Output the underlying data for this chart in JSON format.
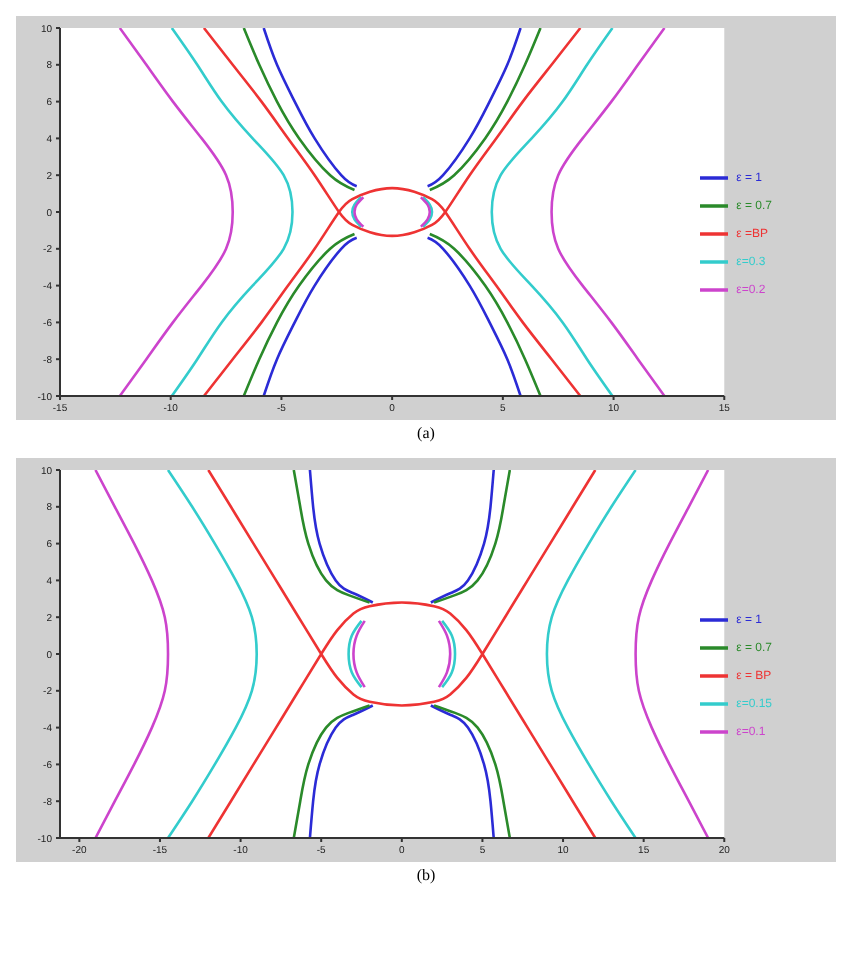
{
  "chart_data": [
    {
      "type": "line",
      "annotations": [
        "(a)"
      ],
      "xlim": [
        -15,
        15
      ],
      "xticks": [
        -15,
        -10,
        -5,
        0,
        5,
        10,
        15
      ],
      "ylim": [
        -10,
        10
      ],
      "yticks": [
        -10,
        -8,
        -6,
        -4,
        -2,
        0,
        2,
        4,
        6,
        8,
        10
      ],
      "legend": "right",
      "series": [
        {
          "name": "ε = 1",
          "color": "#2b2bd6",
          "x": [
            -5.8,
            -5.2,
            -4.4,
            -3.5,
            -2.3,
            -1.6,
            null,
            5.8,
            5.2,
            4.4,
            3.5,
            2.3,
            1.6,
            null,
            -5.8,
            -5.2,
            -4.4,
            -3.5,
            -2.3,
            -1.6,
            null,
            5.8,
            5.2,
            4.4,
            3.5,
            2.3,
            1.6
          ],
          "values": [
            10,
            8,
            6,
            4,
            2,
            1.4,
            null,
            10,
            8,
            6,
            4,
            2,
            1.4,
            null,
            -10,
            -8,
            -6,
            -4,
            -2,
            -1.4,
            null,
            -10,
            -8,
            -6,
            -4,
            -2,
            -1.4
          ]
        },
        {
          "name": "ε = 0.7",
          "color": "#2a8a2a",
          "x": [
            -6.7,
            -6.0,
            -5.2,
            -4.2,
            -2.8,
            -1.7,
            null,
            6.7,
            6.0,
            5.2,
            4.2,
            2.8,
            1.7,
            null,
            -6.7,
            -6.0,
            -5.2,
            -4.2,
            -2.8,
            -1.7,
            null,
            6.7,
            6.0,
            5.2,
            4.2,
            2.8,
            1.7
          ],
          "values": [
            10,
            8,
            6,
            4,
            2,
            1.2,
            null,
            10,
            8,
            6,
            4,
            2,
            1.2,
            null,
            -10,
            -8,
            -6,
            -4,
            -2,
            -1.2,
            null,
            -10,
            -8,
            -6,
            -4,
            -2,
            -1.2
          ]
        },
        {
          "name": "ε =BP",
          "color": "#ee3333",
          "x": [
            -8.5,
            -7.2,
            -5.9,
            -4.7,
            -3.5,
            -2.4,
            -1.8,
            -1,
            0,
            1,
            1.8,
            2.4,
            3.5,
            4.7,
            5.9,
            7.2,
            8.5,
            null,
            -8.5,
            -7.2,
            -5.9,
            -4.7,
            -3.5,
            -2.4,
            -1.8,
            -1,
            0,
            1,
            1.8,
            2.4,
            3.5,
            4.7,
            5.9,
            7.2,
            8.5
          ],
          "values": [
            10,
            8,
            6,
            4,
            2,
            0,
            -0.7,
            -1.1,
            -1.3,
            -1.1,
            -0.7,
            0,
            2,
            4,
            6,
            8,
            10,
            null,
            -10,
            -8,
            -6,
            -4,
            -2,
            0,
            0.7,
            1.1,
            1.3,
            1.1,
            0.7,
            0,
            -2,
            -4,
            -6,
            -8,
            -10
          ]
        },
        {
          "name": "ε=0.3",
          "color": "#33cccc",
          "x": [
            9.95,
            8.8,
            7.7,
            6.3,
            4.9,
            4.5,
            4.9,
            6.3,
            7.7,
            8.8,
            9.95,
            null,
            -9.95,
            -8.8,
            -7.7,
            -6.3,
            -4.9,
            -4.5,
            -4.9,
            -6.3,
            -7.7,
            -8.8,
            -9.95,
            null,
            1.4,
            1.7,
            1.8,
            1.7,
            1.4,
            null,
            -1.4,
            -1.7,
            -1.8,
            -1.7,
            -1.4
          ],
          "values": [
            -10,
            -8,
            -6,
            -4,
            -2,
            0,
            2,
            4,
            6,
            8,
            10,
            null,
            -10,
            -8,
            -6,
            -4,
            -2,
            0,
            2,
            4,
            6,
            8,
            10,
            null,
            -0.8,
            -0.4,
            0,
            0.4,
            0.8,
            null,
            -0.8,
            -0.4,
            0,
            0.4,
            0.8
          ]
        },
        {
          "name": "ε=0.2",
          "color": "#cc44cc",
          "x": [
            12.3,
            11.1,
            9.9,
            8.6,
            7.5,
            7.2,
            7.5,
            8.6,
            9.9,
            11.1,
            12.3,
            null,
            -12.3,
            -11.1,
            -9.9,
            -8.6,
            -7.5,
            -7.2,
            -7.5,
            -8.6,
            -9.9,
            -11.1,
            -12.3,
            null,
            1.3,
            1.6,
            1.7,
            1.6,
            1.3,
            null,
            -1.3,
            -1.6,
            -1.7,
            -1.6,
            -1.3
          ],
          "values": [
            -10,
            -8,
            -6,
            -4,
            -2,
            0,
            2,
            4,
            6,
            8,
            10,
            null,
            -10,
            -8,
            -6,
            -4,
            -2,
            0,
            2,
            4,
            6,
            8,
            10,
            null,
            -0.8,
            -0.4,
            0,
            0.4,
            0.8,
            null,
            -0.8,
            -0.4,
            0,
            0.4,
            0.8
          ]
        }
      ]
    },
    {
      "type": "line",
      "annotations": [
        "(b)"
      ],
      "xlim": [
        -21.2,
        20
      ],
      "xticks": [
        -20,
        -15,
        -10,
        -5,
        0,
        5,
        10,
        15,
        20
      ],
      "ylim": [
        -10,
        10
      ],
      "yticks": [
        -10,
        -8,
        -6,
        -4,
        -2,
        0,
        2,
        4,
        6,
        8,
        10
      ],
      "legend": "right",
      "series": [
        {
          "name": "ε = 1",
          "color": "#2b2bd6",
          "x": [
            -5.7,
            -5.5,
            -5.1,
            -4.1,
            -3,
            -1.8,
            null,
            5.7,
            5.5,
            5.1,
            4.1,
            3,
            1.8,
            null,
            -5.7,
            -5.5,
            -5.1,
            -4.1,
            -3,
            -1.8,
            null,
            5.7,
            5.5,
            5.1,
            4.1,
            3,
            1.8
          ],
          "values": [
            10,
            8,
            6,
            4,
            3.3,
            2.8,
            null,
            10,
            8,
            6,
            4,
            3.3,
            2.8,
            null,
            -10,
            -8,
            -6,
            -4,
            -3.3,
            -2.8,
            null,
            -10,
            -8,
            -6,
            -4,
            -3.3,
            -2.8
          ]
        },
        {
          "name": "ε = 0.7",
          "color": "#2a8a2a",
          "x": [
            -6.7,
            -6.3,
            -5.8,
            -4.7,
            -3.3,
            -2,
            null,
            6.7,
            6.3,
            5.8,
            4.7,
            3.3,
            2,
            null,
            -6.7,
            -6.3,
            -5.8,
            -4.7,
            -3.3,
            -2,
            null,
            6.7,
            6.3,
            5.8,
            4.7,
            3.3,
            2
          ],
          "values": [
            10,
            8,
            6,
            4,
            3.2,
            2.8,
            null,
            10,
            8,
            6,
            4,
            3.2,
            2.8,
            null,
            -10,
            -8,
            -6,
            -4,
            -3.2,
            -2.8,
            null,
            -10,
            -8,
            -6,
            -4,
            -3.2,
            -2.8
          ]
        },
        {
          "name": "ε = BP",
          "color": "#ee3333",
          "x": [
            -12,
            -10.6,
            -9.2,
            -7.8,
            -6.4,
            -5,
            -4,
            -3,
            -2,
            0,
            2,
            3,
            4,
            5,
            6.4,
            7.8,
            9.2,
            10.6,
            12,
            null,
            -12,
            -10.6,
            -9.2,
            -7.8,
            -6.4,
            -5,
            -4,
            -3,
            -2,
            0,
            2,
            3,
            4,
            5,
            6.4,
            7.8,
            9.2,
            10.6,
            12
          ],
          "values": [
            10,
            8,
            6,
            4,
            2,
            0,
            -1.3,
            -2.2,
            -2.6,
            -2.8,
            -2.6,
            -2.2,
            -1.3,
            0,
            2,
            4,
            6,
            8,
            10,
            null,
            -10,
            -8,
            -6,
            -4,
            -2,
            0,
            1.3,
            2.2,
            2.6,
            2.8,
            2.6,
            2.2,
            1.3,
            0,
            -2,
            -4,
            -6,
            -8,
            -10
          ]
        },
        {
          "name": "ε=0.15",
          "color": "#33cccc",
          "x": [
            14.5,
            13,
            11.6,
            10.3,
            9.3,
            9,
            9.3,
            10.3,
            11.6,
            13,
            14.5,
            null,
            -14.5,
            -13,
            -11.6,
            -10.3,
            -9.3,
            -9,
            -9.3,
            -10.3,
            -11.6,
            -13,
            -14.5,
            null,
            2.5,
            3.1,
            3.3,
            3.1,
            2.5,
            null,
            -2.5,
            -3.1,
            -3.3,
            -3.1,
            -2.5
          ],
          "values": [
            -10,
            -8,
            -6,
            -4,
            -2,
            0,
            2,
            4,
            6,
            8,
            10,
            null,
            -10,
            -8,
            -6,
            -4,
            -2,
            0,
            2,
            4,
            6,
            8,
            10,
            null,
            -1.8,
            -1,
            0,
            1,
            1.8,
            null,
            -1.8,
            -1,
            0,
            1,
            1.8
          ]
        },
        {
          "name": "ε=0.1",
          "color": "#cc44cc",
          "x": [
            19,
            17.8,
            16.6,
            15.5,
            14.7,
            14.5,
            14.7,
            15.5,
            16.6,
            17.8,
            19,
            null,
            -19,
            -17.8,
            -16.6,
            -15.5,
            -14.7,
            -14.5,
            -14.7,
            -15.5,
            -16.6,
            -17.8,
            -19,
            null,
            2.3,
            2.8,
            3,
            2.8,
            2.3,
            null,
            -2.3,
            -2.8,
            -3,
            -2.8,
            -2.3
          ],
          "values": [
            -10,
            -8,
            -6,
            -4,
            -2,
            0,
            2,
            4,
            6,
            8,
            10,
            null,
            -10,
            -8,
            -6,
            -4,
            -2,
            0,
            2,
            4,
            6,
            8,
            10,
            null,
            -1.8,
            -1,
            0,
            1,
            1.8,
            null,
            -1.8,
            -1,
            0,
            1,
            1.8
          ]
        }
      ]
    }
  ]
}
